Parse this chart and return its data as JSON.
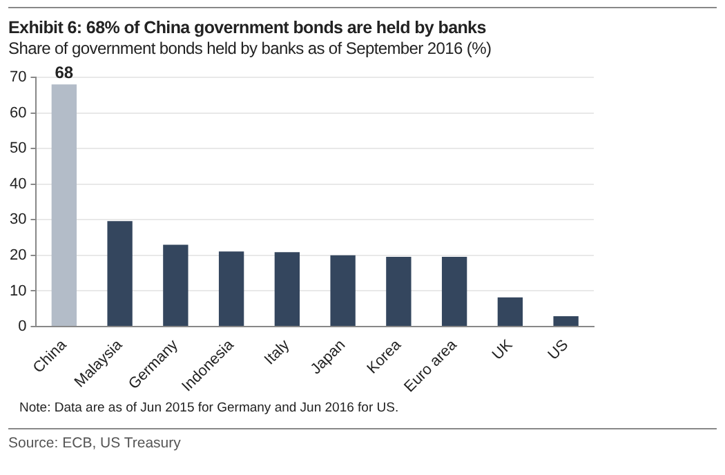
{
  "chart_data": {
    "type": "bar",
    "title": "Exhibit 6: 68% of China government bonds are held by banks",
    "subtitle": "Share of government bonds held by banks as of September 2016 (%)",
    "categories": [
      "China",
      "Malaysia",
      "Germany",
      "Indonesia",
      "Italy",
      "Japan",
      "Korea",
      "Euro area",
      "UK",
      "US"
    ],
    "values": [
      68,
      29.6,
      23,
      21.1,
      20.9,
      20,
      19.6,
      19.6,
      8.2,
      2.9
    ],
    "colors": [
      "#b3bcc8",
      "#34465e",
      "#34465e",
      "#34465e",
      "#34465e",
      "#34465e",
      "#34465e",
      "#34465e",
      "#34465e",
      "#34465e"
    ],
    "value_labels": [
      "68",
      null,
      null,
      null,
      null,
      null,
      null,
      null,
      null,
      null
    ],
    "ylim": [
      0,
      70
    ],
    "yticks": [
      0,
      10,
      20,
      30,
      40,
      50,
      60,
      70
    ],
    "grid": "y",
    "legend": false,
    "annotations": [
      "Note: Data are as of Jun 2015 for Germany and Jun 2016 for  US.",
      "Source: ECB, US Treasury"
    ]
  }
}
